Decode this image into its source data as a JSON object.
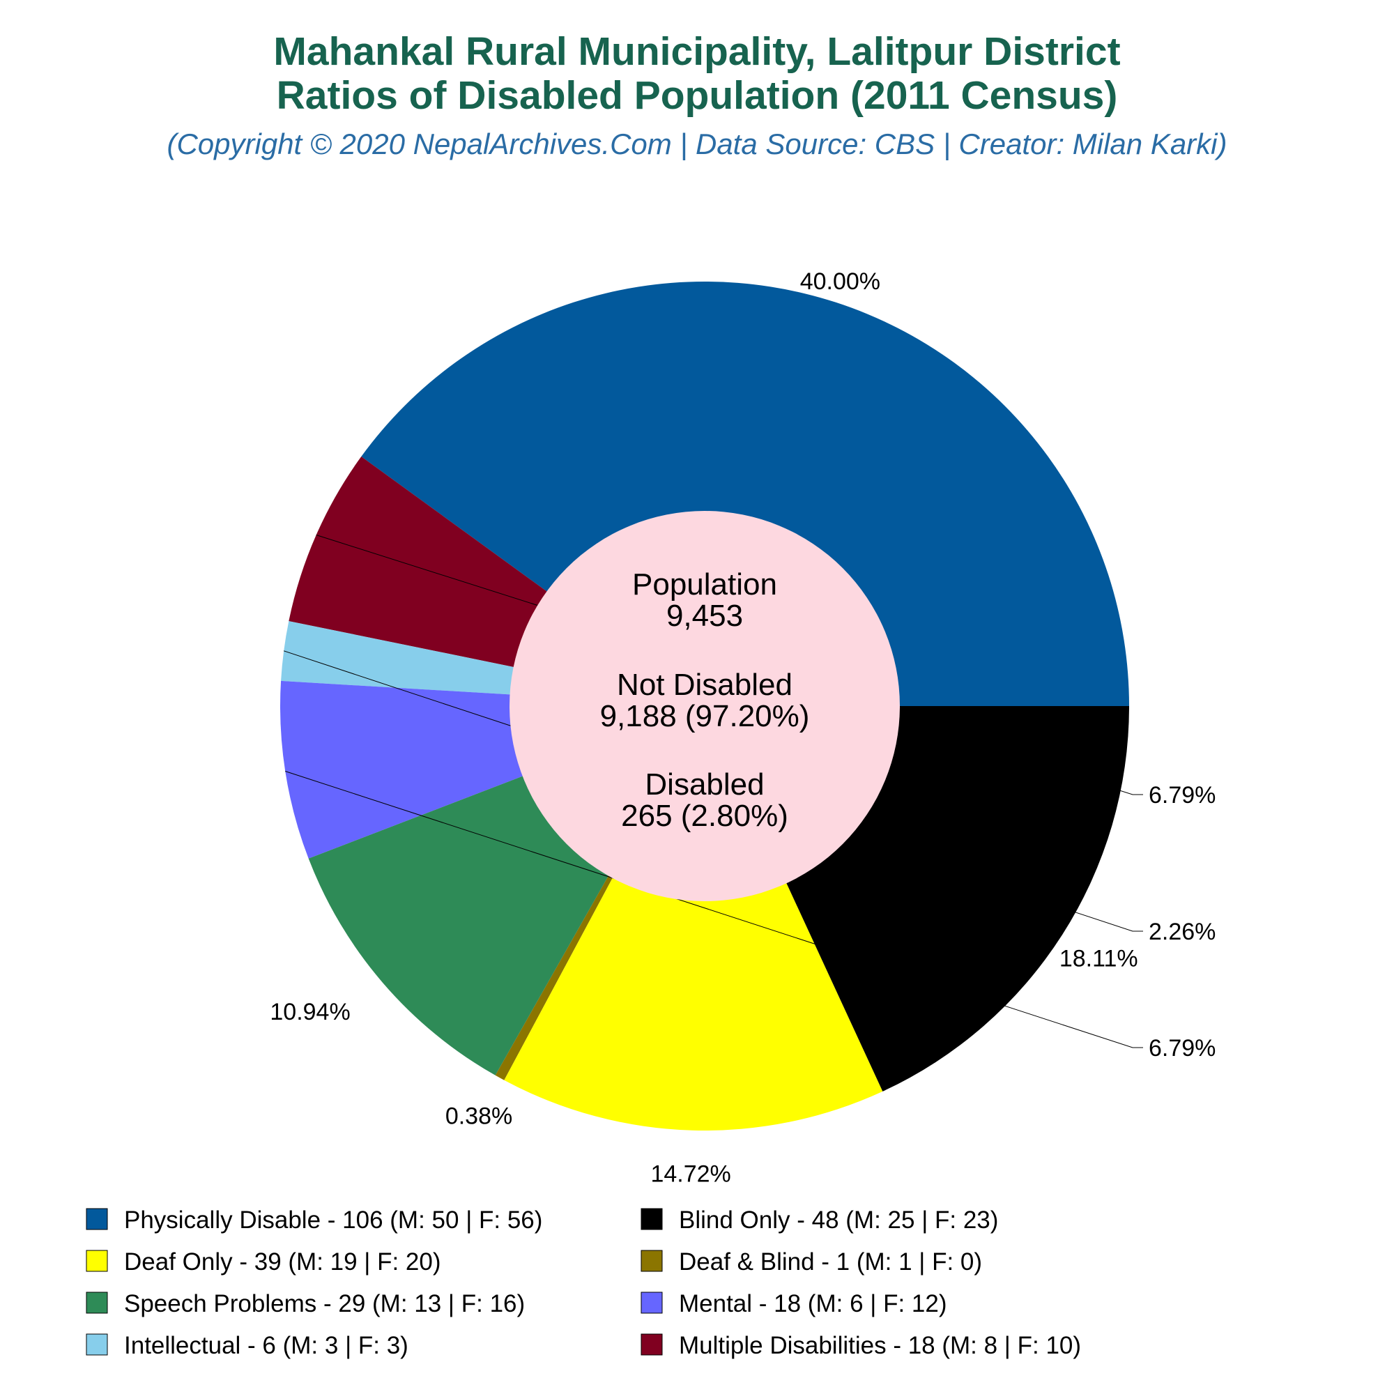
{
  "colors": {
    "title": "#17634f",
    "subtitle": "#2a6ca5",
    "center_fill": "#fdd8e0"
  },
  "chart_data": {
    "type": "pie",
    "title_line1": "Mahankal Rural Municipality, Lalitpur District",
    "title_line2": "Ratios of Disabled Population (2011 Census)",
    "subtitle": "(Copyright © 2020 NepalArchives.Com | Data Source: CBS | Creator: Milan Karki)",
    "center": {
      "population_label": "Population",
      "population_value": "9,453",
      "not_disabled_label": "Not Disabled",
      "not_disabled_value": "9,188 (97.20%)",
      "disabled_label": "Disabled",
      "disabled_value": "265 (2.80%)"
    },
    "slices": [
      {
        "legend": "Physically Disable - 106 (M: 50 | F: 56)",
        "value": 106,
        "percent_label": "40.00%",
        "color": "#02599c"
      },
      {
        "legend": "Multiple Disabilities - 18 (M: 8 | F: 10)",
        "value": 18,
        "percent_label": "6.79%",
        "color": "#800020"
      },
      {
        "legend": "Intellectual - 6 (M: 3 | F: 3)",
        "value": 6,
        "percent_label": "2.26%",
        "color": "#87ceeb"
      },
      {
        "legend": "Mental - 18 (M: 6 | F: 12)",
        "value": 18,
        "percent_label": "6.79%",
        "color": "#6666ff"
      },
      {
        "legend": "Speech Problems - 29 (M: 13 | F: 16)",
        "value": 29,
        "percent_label": "10.94%",
        "color": "#2e8b57"
      },
      {
        "legend": "Deaf & Blind - 1 (M: 1 | F: 0)",
        "value": 1,
        "percent_label": "0.38%",
        "color": "#8b7500"
      },
      {
        "legend": "Deaf Only - 39 (M: 19 | F: 20)",
        "value": 39,
        "percent_label": "14.72%",
        "color": "#ffff00"
      },
      {
        "legend": "Blind Only - 48 (M: 25 | F: 23)",
        "value": 48,
        "percent_label": "18.11%",
        "color": "#000000"
      }
    ],
    "legend_order": [
      0,
      7,
      6,
      5,
      4,
      3,
      2,
      1
    ],
    "legend_placement": "bottom"
  }
}
